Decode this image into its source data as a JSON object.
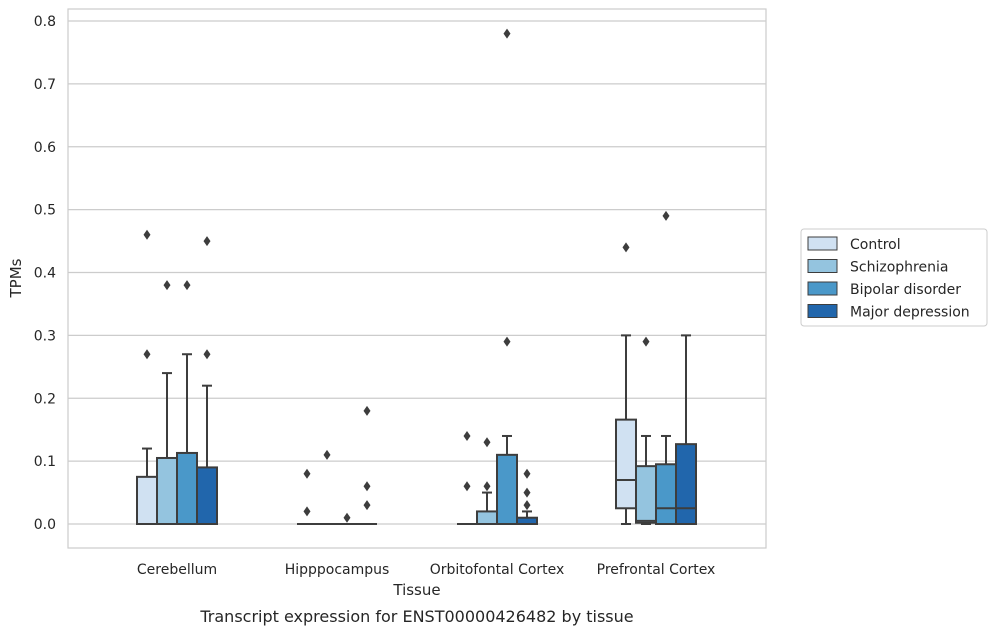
{
  "caption": "Transcript expression for ENST00000426482 by tissue",
  "chart_data": {
    "type": "boxplot",
    "xlabel": "Tissue",
    "ylabel": "TPMs",
    "ylim": [
      -0.04,
      0.82
    ],
    "yticks": [
      0.0,
      0.1,
      0.2,
      0.3,
      0.4,
      0.5,
      0.6,
      0.7,
      0.8
    ],
    "ytick_labels": [
      "0.0",
      "0.1",
      "0.2",
      "0.3",
      "0.4",
      "0.5",
      "0.6",
      "0.7",
      "0.8"
    ],
    "grid": "horizontal",
    "legend_position": "right",
    "categories": [
      "Cerebellum",
      "Hipppocampus",
      "Orbitofontal Cortex",
      "Prefrontal Cortex"
    ],
    "series": [
      {
        "name": "Control",
        "color": "#d0e1f2",
        "boxes": [
          {
            "whislo": 0.0,
            "q1": 0.0,
            "med": 0.0,
            "q3": 0.075,
            "whishi": 0.12,
            "fliers": [
              0.27,
              0.46
            ]
          },
          {
            "whislo": 0.0,
            "q1": 0.0,
            "med": 0.0,
            "q3": 0.0,
            "whishi": 0.0,
            "fliers": [
              0.02,
              0.08
            ]
          },
          {
            "whislo": 0.0,
            "q1": 0.0,
            "med": 0.0,
            "q3": 0.0,
            "whishi": 0.0,
            "fliers": [
              0.06,
              0.14
            ]
          },
          {
            "whislo": 0.0,
            "q1": 0.025,
            "med": 0.07,
            "q3": 0.166,
            "whishi": 0.3,
            "fliers": [
              0.44
            ]
          }
        ]
      },
      {
        "name": "Schizophrenia",
        "color": "#94c4df",
        "boxes": [
          {
            "whislo": 0.0,
            "q1": 0.0,
            "med": 0.0,
            "q3": 0.105,
            "whishi": 0.24,
            "fliers": [
              0.38
            ]
          },
          {
            "whislo": 0.0,
            "q1": 0.0,
            "med": 0.0,
            "q3": 0.0,
            "whishi": 0.0,
            "fliers": [
              0.11
            ]
          },
          {
            "whislo": 0.0,
            "q1": 0.0,
            "med": 0.0,
            "q3": 0.02,
            "whishi": 0.05,
            "fliers": [
              0.06,
              0.13
            ]
          },
          {
            "whislo": 0.0,
            "q1": 0.002,
            "med": 0.005,
            "q3": 0.092,
            "whishi": 0.14,
            "fliers": [
              0.29
            ]
          }
        ]
      },
      {
        "name": "Bipolar disorder",
        "color": "#4a98c9",
        "boxes": [
          {
            "whislo": 0.0,
            "q1": 0.0,
            "med": 0.0,
            "q3": 0.113,
            "whishi": 0.27,
            "fliers": [
              0.38
            ]
          },
          {
            "whislo": 0.0,
            "q1": 0.0,
            "med": 0.0,
            "q3": 0.0,
            "whishi": 0.0,
            "fliers": [
              0.01
            ]
          },
          {
            "whislo": 0.0,
            "q1": 0.0,
            "med": 0.0,
            "q3": 0.11,
            "whishi": 0.14,
            "fliers": [
              0.29,
              0.78
            ]
          },
          {
            "whislo": 0.0,
            "q1": 0.0,
            "med": 0.025,
            "q3": 0.095,
            "whishi": 0.14,
            "fliers": [
              0.49
            ]
          }
        ]
      },
      {
        "name": "Major depression",
        "color": "#2166ac",
        "boxes": [
          {
            "whislo": 0.0,
            "q1": 0.0,
            "med": 0.0,
            "q3": 0.09,
            "whishi": 0.22,
            "fliers": [
              0.27,
              0.45
            ]
          },
          {
            "whislo": 0.0,
            "q1": 0.0,
            "med": 0.0,
            "q3": 0.0,
            "whishi": 0.0,
            "fliers": [
              0.03,
              0.06,
              0.18
            ]
          },
          {
            "whislo": 0.0,
            "q1": 0.0,
            "med": 0.0,
            "q3": 0.01,
            "whishi": 0.02,
            "fliers": [
              0.03,
              0.05,
              0.08
            ]
          },
          {
            "whislo": 0.0,
            "q1": 0.0,
            "med": 0.025,
            "q3": 0.127,
            "whishi": 0.3,
            "fliers": []
          }
        ]
      }
    ]
  }
}
